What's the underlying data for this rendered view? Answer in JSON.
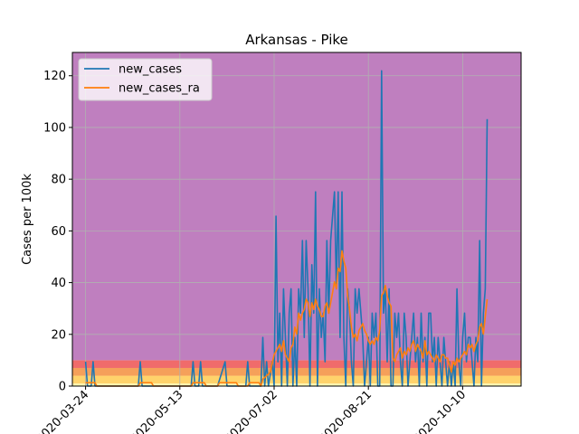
{
  "chart_data": {
    "type": "line",
    "title": "Arkansas - Pike",
    "xlabel": "",
    "ylabel": "Cases per 100k",
    "ylim": [
      0,
      129
    ],
    "xlim_days": [
      -7,
      231
    ],
    "yticks": [
      0,
      20,
      40,
      60,
      80,
      100,
      120
    ],
    "xticks": [
      {
        "label": "2020-03-24",
        "day": 0
      },
      {
        "label": "2020-05-13",
        "day": 50
      },
      {
        "label": "2020-07-02",
        "day": 100
      },
      {
        "label": "2020-08-21",
        "day": 150
      },
      {
        "label": "2020-10-10",
        "day": 200
      }
    ],
    "grid": true,
    "legend_position": "top-left",
    "bands": [
      {
        "from": 0,
        "to": 1,
        "color": "#fff7b0"
      },
      {
        "from": 1,
        "to": 4,
        "color": "#ffd36b"
      },
      {
        "from": 4,
        "to": 7,
        "color": "#f5a05a"
      },
      {
        "from": 7,
        "to": 10,
        "color": "#f06b6b"
      },
      {
        "from": 10,
        "to": 129,
        "color": "#bf7fbf"
      }
    ],
    "series": [
      {
        "name": "new_cases",
        "color": "#1f77b4",
        "points": [
          [
            0,
            9.4
          ],
          [
            1,
            0
          ],
          [
            2,
            0
          ],
          [
            3,
            0
          ],
          [
            4,
            9.4
          ],
          [
            5,
            0
          ],
          [
            10,
            0
          ],
          [
            20,
            0
          ],
          [
            28,
            0
          ],
          [
            29,
            9.4
          ],
          [
            30,
            0
          ],
          [
            40,
            0
          ],
          [
            56,
            0
          ],
          [
            57,
            9.4
          ],
          [
            58,
            0
          ],
          [
            60,
            0
          ],
          [
            61,
            9.4
          ],
          [
            62,
            0
          ],
          [
            70,
            0
          ],
          [
            74,
            9.4
          ],
          [
            75,
            0
          ],
          [
            85,
            0
          ],
          [
            86,
            9.4
          ],
          [
            87,
            0
          ],
          [
            93,
            0
          ],
          [
            94,
            18.8
          ],
          [
            95,
            0
          ],
          [
            96,
            9.4
          ],
          [
            97,
            0
          ],
          [
            99,
            9.4
          ],
          [
            100,
            0
          ],
          [
            101,
            65.7
          ],
          [
            102,
            9.4
          ],
          [
            103,
            28.2
          ],
          [
            104,
            0
          ],
          [
            105,
            37.6
          ],
          [
            106,
            18.8
          ],
          [
            107,
            0
          ],
          [
            108,
            28.2
          ],
          [
            109,
            37.6
          ],
          [
            110,
            0
          ],
          [
            111,
            18.8
          ],
          [
            112,
            0
          ],
          [
            113,
            37.6
          ],
          [
            114,
            28.2
          ],
          [
            115,
            56.3
          ],
          [
            116,
            18.8
          ],
          [
            117,
            56.3
          ],
          [
            118,
            37.6
          ],
          [
            119,
            0
          ],
          [
            120,
            46.9
          ],
          [
            121,
            28.2
          ],
          [
            122,
            75.1
          ],
          [
            123,
            0
          ],
          [
            124,
            37.6
          ],
          [
            125,
            18.8
          ],
          [
            126,
            28.2
          ],
          [
            127,
            9.4
          ],
          [
            128,
            56.3
          ],
          [
            129,
            28.2
          ],
          [
            130,
            56.3
          ],
          [
            131,
            65.7
          ],
          [
            132,
            75.1
          ],
          [
            133,
            37.6
          ],
          [
            134,
            75.1
          ],
          [
            135,
            18.8
          ],
          [
            136,
            75.1
          ],
          [
            137,
            18.8
          ],
          [
            138,
            0
          ],
          [
            139,
            37.6
          ],
          [
            140,
            28.2
          ],
          [
            141,
            9.4
          ],
          [
            142,
            0
          ],
          [
            143,
            37.6
          ],
          [
            144,
            28.2
          ],
          [
            145,
            37.6
          ],
          [
            146,
            28.2
          ],
          [
            147,
            18.8
          ],
          [
            148,
            0
          ],
          [
            149,
            9.4
          ],
          [
            150,
            18.8
          ],
          [
            151,
            0
          ],
          [
            152,
            28.2
          ],
          [
            153,
            18.8
          ],
          [
            154,
            28.2
          ],
          [
            155,
            0
          ],
          [
            156,
            0
          ],
          [
            157,
            121.9
          ],
          [
            158,
            28.2
          ],
          [
            159,
            37.6
          ],
          [
            160,
            9.4
          ],
          [
            161,
            37.6
          ],
          [
            162,
            0
          ],
          [
            163,
            0
          ],
          [
            164,
            28.2
          ],
          [
            165,
            18.8
          ],
          [
            166,
            28.2
          ],
          [
            167,
            9.4
          ],
          [
            168,
            0
          ],
          [
            169,
            28.2
          ],
          [
            170,
            18.8
          ],
          [
            171,
            0
          ],
          [
            172,
            9.4
          ],
          [
            173,
            18.8
          ],
          [
            174,
            28.2
          ],
          [
            175,
            9.4
          ],
          [
            176,
            18.8
          ],
          [
            177,
            0
          ],
          [
            178,
            28.2
          ],
          [
            179,
            9.4
          ],
          [
            180,
            18.8
          ],
          [
            181,
            0
          ],
          [
            182,
            28.2
          ],
          [
            183,
            28.2
          ],
          [
            184,
            9.4
          ],
          [
            185,
            18.8
          ],
          [
            186,
            0
          ],
          [
            187,
            18.8
          ],
          [
            188,
            9.4
          ],
          [
            189,
            0
          ],
          [
            190,
            18.8
          ],
          [
            191,
            9.4
          ],
          [
            192,
            0
          ],
          [
            193,
            9.4
          ],
          [
            194,
            0
          ],
          [
            195,
            9.4
          ],
          [
            196,
            0
          ],
          [
            197,
            37.6
          ],
          [
            198,
            9.4
          ],
          [
            199,
            0
          ],
          [
            200,
            18.8
          ],
          [
            201,
            28.2
          ],
          [
            202,
            9.4
          ],
          [
            203,
            18.8
          ],
          [
            204,
            18.8
          ],
          [
            205,
            9.4
          ],
          [
            206,
            0
          ],
          [
            207,
            18.8
          ],
          [
            208,
            9.4
          ],
          [
            209,
            56.3
          ],
          [
            210,
            0
          ],
          [
            211,
            28.2
          ],
          [
            212,
            37.6
          ],
          [
            213,
            103.2
          ]
        ]
      },
      {
        "name": "new_cases_ra",
        "color": "#ff7f0e",
        "points": [
          [
            0,
            1.3
          ],
          [
            1,
            1.3
          ],
          [
            2,
            1.3
          ],
          [
            3,
            1.3
          ],
          [
            4,
            1.3
          ],
          [
            5,
            1.3
          ],
          [
            6,
            0
          ],
          [
            20,
            0
          ],
          [
            28,
            0
          ],
          [
            29,
            1.3
          ],
          [
            35,
            1.3
          ],
          [
            36,
            0
          ],
          [
            56,
            0
          ],
          [
            57,
            1.3
          ],
          [
            63,
            1.3
          ],
          [
            64,
            0
          ],
          [
            70,
            0
          ],
          [
            71,
            1.3
          ],
          [
            80,
            1.3
          ],
          [
            81,
            0
          ],
          [
            86,
            0
          ],
          [
            87,
            1.3
          ],
          [
            92,
            1.3
          ],
          [
            93,
            0
          ],
          [
            94,
            2.7
          ],
          [
            96,
            4.0
          ],
          [
            98,
            5.4
          ],
          [
            100,
            12.1
          ],
          [
            102,
            14.8
          ],
          [
            103,
            16.1
          ],
          [
            104,
            13.4
          ],
          [
            105,
            17.5
          ],
          [
            106,
            12.1
          ],
          [
            107,
            10.8
          ],
          [
            108,
            9.4
          ],
          [
            109,
            14.8
          ],
          [
            110,
            16.1
          ],
          [
            111,
            22.8
          ],
          [
            112,
            20.1
          ],
          [
            113,
            28.2
          ],
          [
            114,
            25.5
          ],
          [
            115,
            28.2
          ],
          [
            116,
            29.6
          ],
          [
            117,
            33.6
          ],
          [
            118,
            32.2
          ],
          [
            119,
            26.9
          ],
          [
            120,
            32.2
          ],
          [
            121,
            29.6
          ],
          [
            122,
            33.6
          ],
          [
            123,
            30.9
          ],
          [
            124,
            29.6
          ],
          [
            125,
            26.9
          ],
          [
            126,
            26.9
          ],
          [
            127,
            30.9
          ],
          [
            128,
            32.2
          ],
          [
            129,
            28.2
          ],
          [
            130,
            32.2
          ],
          [
            131,
            36.2
          ],
          [
            132,
            40.3
          ],
          [
            133,
            37.6
          ],
          [
            134,
            45.6
          ],
          [
            135,
            44.3
          ],
          [
            136,
            52.3
          ],
          [
            137,
            48.3
          ],
          [
            138,
            45.6
          ],
          [
            139,
            34.9
          ],
          [
            140,
            29.6
          ],
          [
            141,
            22.8
          ],
          [
            142,
            18.8
          ],
          [
            143,
            20.1
          ],
          [
            144,
            17.5
          ],
          [
            145,
            21.5
          ],
          [
            146,
            22.8
          ],
          [
            147,
            24.2
          ],
          [
            148,
            21.5
          ],
          [
            149,
            20.1
          ],
          [
            150,
            17.5
          ],
          [
            151,
            16.1
          ],
          [
            152,
            17.5
          ],
          [
            153,
            16.1
          ],
          [
            154,
            18.8
          ],
          [
            155,
            17.5
          ],
          [
            156,
            21.5
          ],
          [
            157,
            34.9
          ],
          [
            158,
            36.2
          ],
          [
            159,
            38.9
          ],
          [
            160,
            34.9
          ],
          [
            161,
            32.2
          ],
          [
            162,
            30.9
          ],
          [
            163,
            10.8
          ],
          [
            164,
            9.4
          ],
          [
            165,
            12.1
          ],
          [
            166,
            13.4
          ],
          [
            167,
            14.8
          ],
          [
            168,
            10.8
          ],
          [
            169,
            13.4
          ],
          [
            170,
            12.1
          ],
          [
            171,
            14.8
          ],
          [
            172,
            13.4
          ],
          [
            173,
            16.1
          ],
          [
            174,
            17.5
          ],
          [
            175,
            13.4
          ],
          [
            176,
            16.1
          ],
          [
            177,
            14.8
          ],
          [
            178,
            13.4
          ],
          [
            179,
            10.8
          ],
          [
            180,
            17.5
          ],
          [
            181,
            12.1
          ],
          [
            182,
            13.4
          ],
          [
            183,
            12.1
          ],
          [
            184,
            10.8
          ],
          [
            185,
            9.4
          ],
          [
            186,
            12.1
          ],
          [
            187,
            10.8
          ],
          [
            188,
            9.4
          ],
          [
            189,
            12.1
          ],
          [
            190,
            12.1
          ],
          [
            191,
            10.8
          ],
          [
            192,
            10.8
          ],
          [
            193,
            8.1
          ],
          [
            194,
            5.4
          ],
          [
            195,
            9.4
          ],
          [
            196,
            8.1
          ],
          [
            197,
            10.8
          ],
          [
            198,
            9.4
          ],
          [
            199,
            10.8
          ],
          [
            200,
            12.1
          ],
          [
            201,
            13.4
          ],
          [
            202,
            12.1
          ],
          [
            203,
            16.1
          ],
          [
            204,
            14.8
          ],
          [
            205,
            16.1
          ],
          [
            206,
            13.4
          ],
          [
            207,
            16.1
          ],
          [
            208,
            17.5
          ],
          [
            209,
            22.8
          ],
          [
            210,
            24.2
          ],
          [
            211,
            20.1
          ],
          [
            212,
            26.9
          ],
          [
            213,
            33.6
          ]
        ]
      }
    ]
  }
}
